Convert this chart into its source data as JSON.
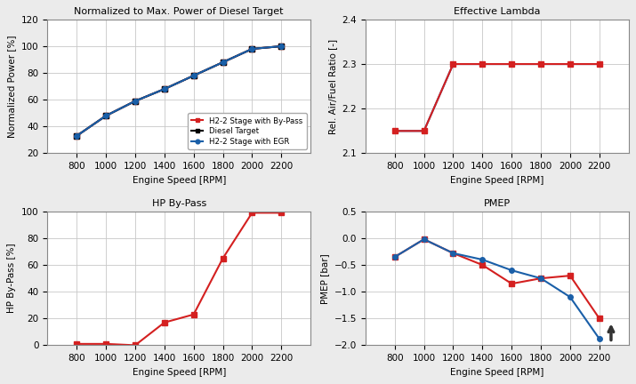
{
  "rpm": [
    800,
    1000,
    1200,
    1400,
    1600,
    1800,
    2000,
    2200
  ],
  "norm_power_diesel": [
    33,
    48,
    59,
    68,
    78,
    88,
    98,
    100
  ],
  "norm_power_bypass": [
    33,
    48,
    59,
    68,
    78,
    88,
    98,
    100
  ],
  "norm_power_egr": [
    33,
    48,
    59,
    68,
    78,
    88,
    98,
    100
  ],
  "lambda_bypass": [
    2.15,
    2.15,
    2.3,
    2.3,
    2.3,
    2.3,
    2.3,
    2.3
  ],
  "lambda_egr": [
    2.15,
    2.15,
    2.3,
    2.3,
    2.3,
    2.3,
    2.3,
    2.3
  ],
  "hp_bypass": [
    1,
    1,
    0,
    17,
    23,
    65,
    99,
    99
  ],
  "pmep_bypass": [
    -0.35,
    -0.02,
    -0.28,
    -0.5,
    -0.85,
    -0.75,
    -0.7,
    -1.5
  ],
  "pmep_egr": [
    -0.35,
    -0.02,
    -0.28,
    -0.4,
    -0.6,
    -0.75,
    -1.1,
    -1.88
  ],
  "color_diesel": "#000000",
  "color_bypass": "#d42020",
  "color_egr": "#1a5fa8",
  "title_top_left": "Normalized to Max. Power of Diesel Target",
  "title_top_right": "Effective Lambda",
  "title_bot_left": "HP By-Pass",
  "title_bot_right": "PMEP",
  "xlabel": "Engine Speed [RPM]",
  "ylabel_tl": "Normalized Power [%]",
  "ylabel_tr": "Rel. Air/Fuel Ratio [-]",
  "ylabel_bl": "HP By-Pass [%]",
  "ylabel_br": "PMEP [bar]",
  "legend_diesel": "Diesel Target",
  "legend_bypass": "H2-2 Stage with By-Pass",
  "legend_egr": "H2-2 Stage with EGR",
  "xlim": [
    600,
    2400
  ],
  "xticks": [
    800,
    1000,
    1200,
    1400,
    1600,
    1800,
    2000,
    2200
  ],
  "ylim_tl": [
    20,
    120
  ],
  "yticks_tl": [
    20,
    40,
    60,
    80,
    100,
    120
  ],
  "ylim_tr": [
    2.1,
    2.4
  ],
  "yticks_tr": [
    2.1,
    2.2,
    2.3,
    2.4
  ],
  "ylim_bl": [
    0,
    100
  ],
  "yticks_bl": [
    0,
    20,
    40,
    60,
    80,
    100
  ],
  "ylim_br": [
    -2.0,
    0.5
  ],
  "yticks_br": [
    -2.0,
    -1.5,
    -1.0,
    -0.5,
    0.0,
    0.5
  ],
  "fig_bg": "#ebebeb",
  "axes_bg": "#ffffff",
  "grid_color": "#c8c8c8"
}
